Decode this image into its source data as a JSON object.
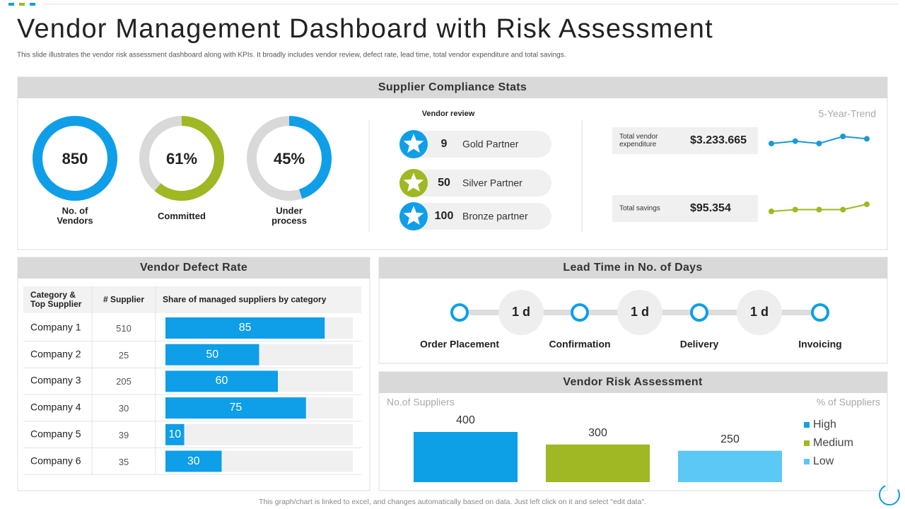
{
  "header": {
    "title": "Vendor Management Dashboard with Risk Assessment",
    "subtitle": "This slide illustrates the vendor risk assessment dashboard along with KPIs. It broadly includes vendor review, defect rate, lead time, total vendor expenditure and total savings."
  },
  "compliance": {
    "title": "Supplier Compliance Stats",
    "donuts": [
      {
        "value": 850,
        "label": "No. of Vendors",
        "color": "#0f9ee8"
      },
      {
        "value": 61,
        "value_label": "61%",
        "max": 100,
        "label": "Committed",
        "color": "#9fb823"
      },
      {
        "value": 45,
        "value_label": "45%",
        "max": 100,
        "label": "Under process",
        "color": "#0f9ee8"
      }
    ],
    "review": {
      "title": "Vendor review",
      "items": [
        {
          "count": 9,
          "label": "Gold Partner",
          "color": "#0f9ee8"
        },
        {
          "count": 50,
          "label": "Silver Partner",
          "color": "#9fb823"
        },
        {
          "count": 100,
          "label": "Bronze partner",
          "color": "#0f9ee8"
        }
      ]
    },
    "trend": {
      "title": "5-Year-Trend",
      "kpis": [
        {
          "label": "Total vendor expenditure",
          "value": "$3.233.665",
          "color": "#1a9ad6",
          "trend": [
            10,
            11,
            10,
            13,
            12
          ]
        },
        {
          "label": "Total savings",
          "value": "$95.354",
          "color": "#9fb823",
          "trend": [
            10,
            11,
            11,
            11,
            14
          ]
        }
      ]
    }
  },
  "defect": {
    "title": "Vendor Defect Rate",
    "columns": [
      "Category & Top Supplier",
      "# Supplier",
      "Share of managed suppliers by category"
    ],
    "max": 100,
    "color": "#0f9ee8",
    "rows": [
      {
        "name": "Company 1",
        "suppliers": 510,
        "share": 85
      },
      {
        "name": "Company 2",
        "suppliers": 25,
        "share": 50
      },
      {
        "name": "Company 3",
        "suppliers": 205,
        "share": 60
      },
      {
        "name": "Company 4",
        "suppliers": 30,
        "share": 75
      },
      {
        "name": "Company 5",
        "suppliers": 39,
        "share": 10
      },
      {
        "name": "Company 6",
        "suppliers": 35,
        "share": 30
      }
    ]
  },
  "lead_time": {
    "title": "Lead Time in No. of Days",
    "steps": [
      "Order Placement",
      "Confirmation",
      "Delivery",
      "Invoicing"
    ],
    "durations": [
      "1 d",
      "1 d",
      "1 d"
    ]
  },
  "risk": {
    "title": "Vendor Risk Assessment",
    "y_label": "No.of Suppliers",
    "y2_label": "% of Suppliers",
    "ylim": [
      0,
      400
    ],
    "series": [
      {
        "name": "High",
        "value": 400,
        "color": "#0ea0e6"
      },
      {
        "name": "Medium",
        "value": 300,
        "color": "#9fb823"
      },
      {
        "name": "Low",
        "value": 250,
        "color": "#5bc8f5"
      }
    ]
  },
  "footer": "This graph/chart is linked to excel, and changes automatically based on data. Just left click on it and select \"edit data\"."
}
